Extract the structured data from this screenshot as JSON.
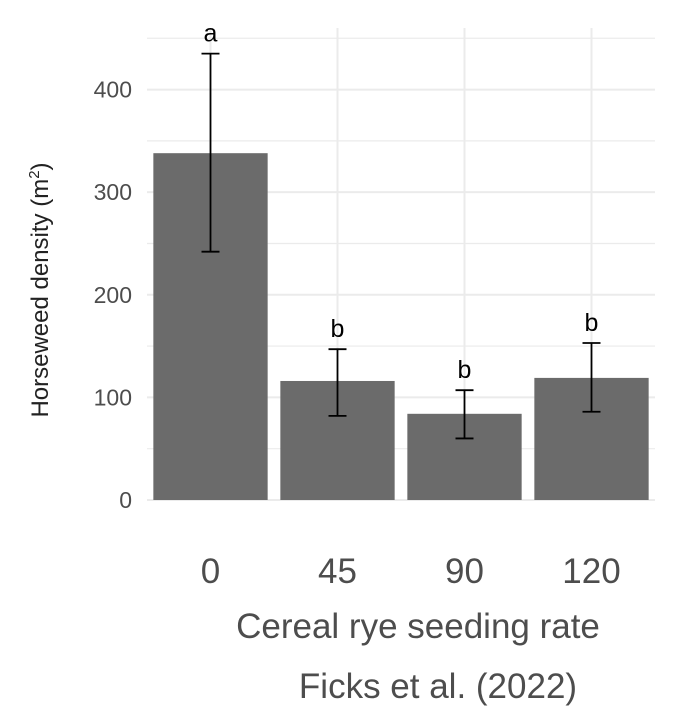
{
  "chart_data": {
    "type": "bar",
    "title": "",
    "categories": [
      "0",
      "45",
      "90",
      "120"
    ],
    "values": [
      338,
      116,
      84,
      119
    ],
    "error_upper": [
      435,
      147,
      107,
      153
    ],
    "error_lower": [
      242,
      82,
      60,
      86
    ],
    "significance_letters": [
      "a",
      "b",
      "b",
      "b"
    ],
    "xlabel": "Cereal rye seeding rate",
    "ylabel": "Horseweed density (m",
    "ylabel_superscript": "2",
    "ylabel_suffix": ")",
    "caption": "Ficks et al. (2022)",
    "ylim": [
      0,
      460
    ],
    "yticks": [
      0,
      100,
      200,
      300,
      400
    ],
    "grid": true,
    "bar_color": "#6b6b6b",
    "grid_color": "#ebebeb"
  }
}
